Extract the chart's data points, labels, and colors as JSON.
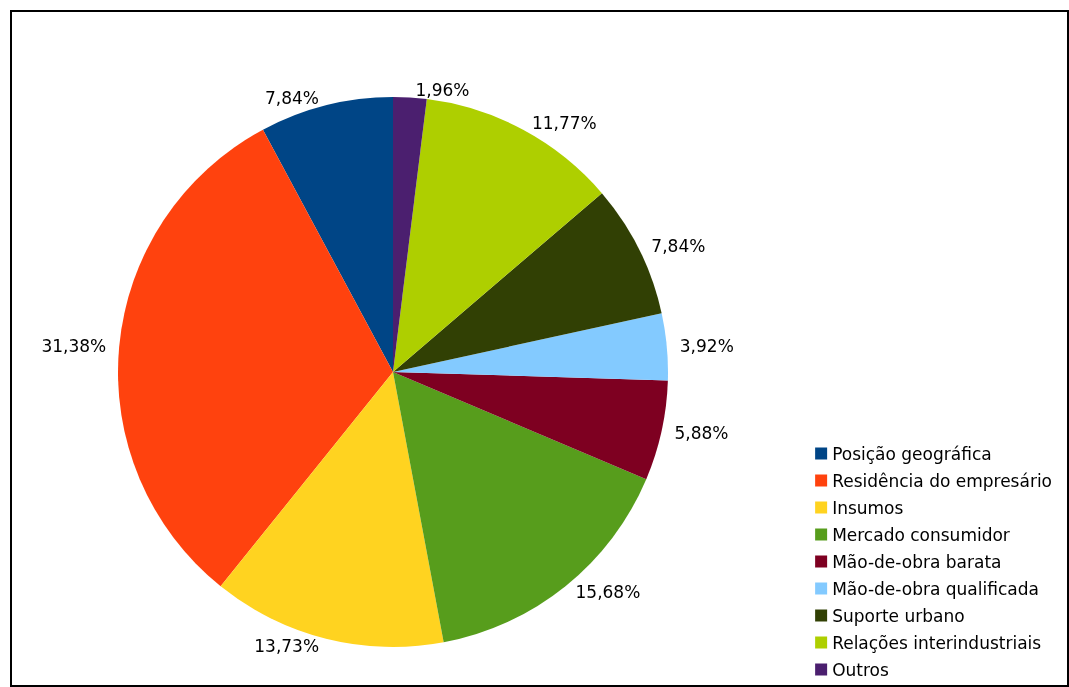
{
  "chart_data": {
    "type": "pie",
    "categories": [
      "Posição geográfica",
      "Residência do empresário",
      "Insumos",
      "Mercado consumidor",
      "Mão-de-obra barata",
      "Mão-de-obra qualificada",
      "Suporte urbano",
      "Relações interindustriais",
      "Outros"
    ],
    "values": [
      7.84,
      31.38,
      13.73,
      15.68,
      5.88,
      3.92,
      7.84,
      11.77,
      1.96
    ],
    "value_labels": [
      "7,84%",
      "31,38%",
      "13,73%",
      "15,68%",
      "5,88%",
      "3,92%",
      "7,84%",
      "11,77%",
      "1,96%"
    ],
    "colors": [
      "#004586",
      "#ff420e",
      "#ffd320",
      "#579d1c",
      "#7e0021",
      "#83caff",
      "#314004",
      "#aecf00",
      "#4b1f6f"
    ],
    "legend": "bottom right"
  }
}
